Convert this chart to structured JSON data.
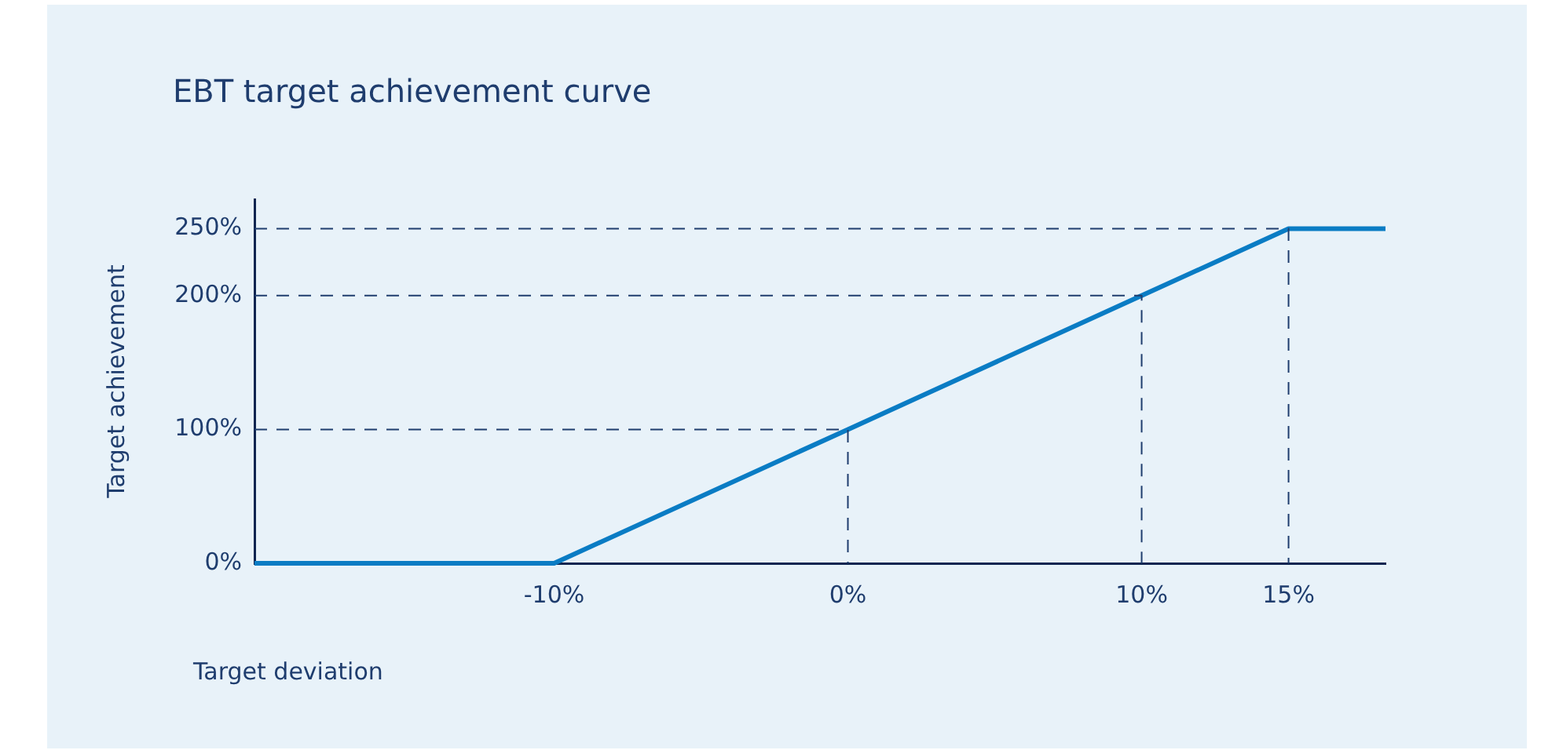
{
  "chart_data": {
    "type": "line",
    "title": "EBT target achievement curve",
    "xlabel": "Target deviation",
    "ylabel": "Target achievement",
    "xlim": [
      -20.2,
      18.3
    ],
    "ylim": [
      0,
      272
    ],
    "xticks": [
      {
        "value": -10,
        "label": "-10%"
      },
      {
        "value": 0,
        "label": "0%"
      },
      {
        "value": 10,
        "label": "10%"
      },
      {
        "value": 15,
        "label": "15%"
      }
    ],
    "yticks": [
      {
        "value": 0,
        "label": "0%"
      },
      {
        "value": 100,
        "label": "100%"
      },
      {
        "value": 200,
        "label": "200%"
      },
      {
        "value": 250,
        "label": "250%"
      }
    ],
    "grid": false,
    "marker": "none",
    "series": [
      {
        "type": "line",
        "color": "#1f3d6e",
        "line_style": "dashed",
        "x": [
          -20.2,
          0,
          0
        ],
        "values": [
          100,
          100,
          0
        ]
      },
      {
        "type": "line",
        "color": "#1f3d6e",
        "line_style": "dashed",
        "x": [
          -20.2,
          10,
          10
        ],
        "values": [
          200,
          200,
          0
        ]
      },
      {
        "type": "line",
        "color": "#1f3d6e",
        "line_style": "dashed",
        "x": [
          -20.2,
          15,
          15
        ],
        "values": [
          250,
          250,
          0
        ]
      },
      {
        "type": "line",
        "color": "#0a7cc4",
        "line_style": "solid",
        "x": [
          -20.2,
          -10,
          0,
          10,
          15,
          18.3
        ],
        "values": [
          0,
          0,
          100,
          200,
          250,
          250
        ]
      }
    ]
  }
}
